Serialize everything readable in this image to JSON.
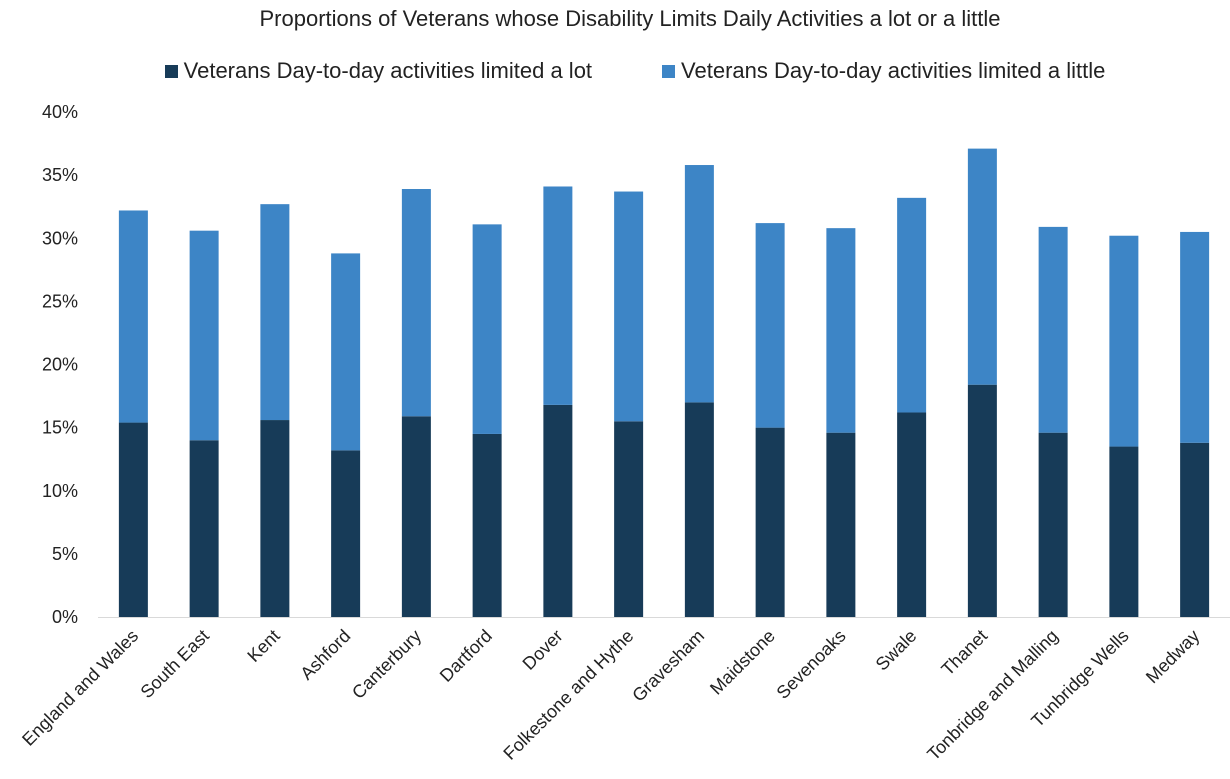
{
  "colors": {
    "lot": "#173b58",
    "little": "#3d85c6",
    "axis": "#d9d9d9"
  },
  "chart_data": {
    "type": "bar",
    "stacked": true,
    "title": "Proportions of Veterans whose Disability Limits Daily Activities a lot or a little",
    "xlabel": "",
    "ylabel": "",
    "ylim": [
      0,
      40
    ],
    "yticks": [
      "0%",
      "5%",
      "10%",
      "15%",
      "20%",
      "25%",
      "30%",
      "35%",
      "40%"
    ],
    "grid": false,
    "legend_position": "top",
    "categories": [
      "England and Wales",
      "South East",
      "Kent",
      "Ashford",
      "Canterbury",
      "Dartford",
      "Dover",
      "Folkestone and Hythe",
      "Gravesham",
      "Maidstone",
      "Sevenoaks",
      "Swale",
      "Thanet",
      "Tonbridge and Malling",
      "Tunbridge Wells",
      "Medway"
    ],
    "series": [
      {
        "name": "Veterans Day-to-day activities limited a lot",
        "values": [
          15.4,
          14.0,
          15.6,
          13.2,
          15.9,
          14.5,
          16.8,
          15.5,
          17.0,
          15.0,
          14.6,
          16.2,
          18.4,
          14.6,
          13.5,
          13.8
        ]
      },
      {
        "name": "Veterans Day-to-day activities limited a little",
        "values": [
          16.8,
          16.6,
          17.1,
          15.6,
          18.0,
          16.6,
          17.3,
          18.2,
          18.8,
          16.2,
          16.2,
          17.0,
          18.7,
          16.3,
          16.7,
          16.7
        ]
      }
    ]
  }
}
